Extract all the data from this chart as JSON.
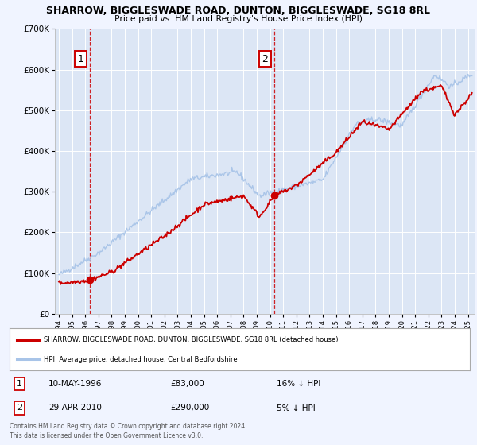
{
  "title": "SHARROW, BIGGLESWADE ROAD, DUNTON, BIGGLESWADE, SG18 8RL",
  "subtitle": "Price paid vs. HM Land Registry's House Price Index (HPI)",
  "background_color": "#f0f4ff",
  "plot_bg_color": "#dce6f5",
  "hpi_color": "#a8c4e8",
  "price_color": "#cc0000",
  "grid_color": "#ffffff",
  "sale1_x": 1996.36,
  "sale1_y": 83000,
  "sale2_x": 2010.33,
  "sale2_y": 290000,
  "legend_line1": "SHARROW, BIGGLESWADE ROAD, DUNTON, BIGGLESWADE, SG18 8RL (detached house)",
  "legend_line2": "HPI: Average price, detached house, Central Bedfordshire",
  "annotation1_date": "10-MAY-1996",
  "annotation1_price": "£83,000",
  "annotation1_hpi": "16% ↓ HPI",
  "annotation2_date": "29-APR-2010",
  "annotation2_price": "£290,000",
  "annotation2_hpi": "5% ↓ HPI",
  "footer1": "Contains HM Land Registry data © Crown copyright and database right 2024.",
  "footer2": "This data is licensed under the Open Government Licence v3.0.",
  "ylim": [
    0,
    700000
  ],
  "yticks": [
    0,
    100000,
    200000,
    300000,
    400000,
    500000,
    600000,
    700000
  ],
  "ytick_labels": [
    "£0",
    "£100K",
    "£200K",
    "£300K",
    "£400K",
    "£500K",
    "£600K",
    "£700K"
  ],
  "xlim_start": 1993.7,
  "xlim_end": 2025.5
}
